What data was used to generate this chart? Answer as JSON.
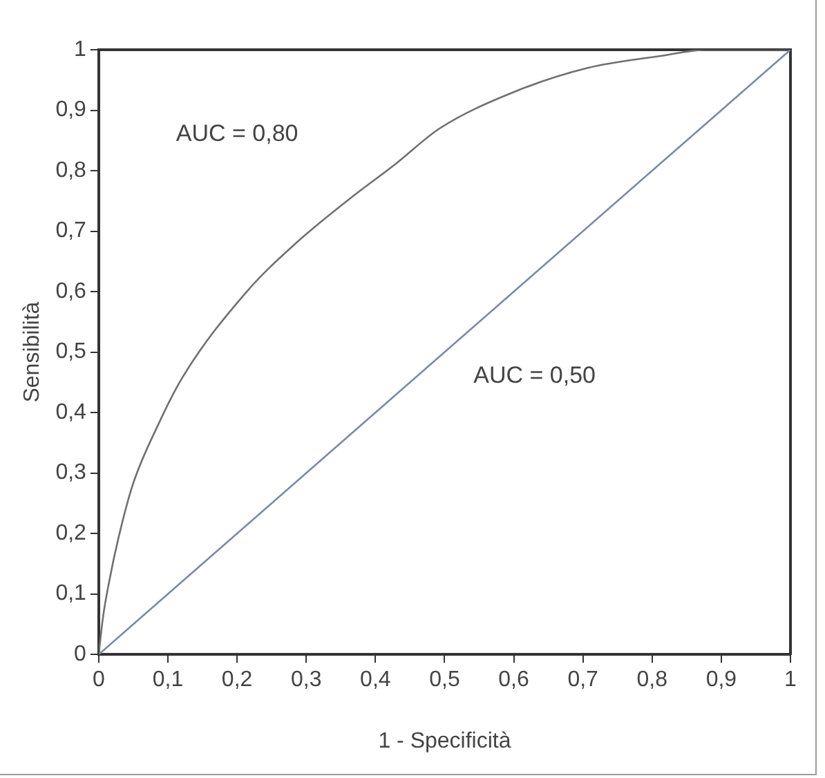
{
  "chart_data": {
    "type": "line",
    "xlabel": "1 - Specificità",
    "ylabel": "Sensibilità",
    "xlim": [
      0,
      1
    ],
    "ylim": [
      0,
      1
    ],
    "xticks": [
      {
        "value": 0,
        "label": "0"
      },
      {
        "value": 0.1,
        "label": "0,1"
      },
      {
        "value": 0.2,
        "label": "0,2"
      },
      {
        "value": 0.3,
        "label": "0,3"
      },
      {
        "value": 0.4,
        "label": "0,4"
      },
      {
        "value": 0.5,
        "label": "0,5"
      },
      {
        "value": 0.6,
        "label": "0,6"
      },
      {
        "value": 0.7,
        "label": "0,7"
      },
      {
        "value": 0.8,
        "label": "0,8"
      },
      {
        "value": 0.9,
        "label": "0,9"
      },
      {
        "value": 1,
        "label": "1"
      }
    ],
    "yticks": [
      {
        "value": 0,
        "label": "0"
      },
      {
        "value": 0.1,
        "label": "0,1"
      },
      {
        "value": 0.2,
        "label": "0,2"
      },
      {
        "value": 0.3,
        "label": "0,3"
      },
      {
        "value": 0.4,
        "label": "0,4"
      },
      {
        "value": 0.5,
        "label": "0,5"
      },
      {
        "value": 0.6,
        "label": "0,6"
      },
      {
        "value": 0.7,
        "label": "0,7"
      },
      {
        "value": 0.8,
        "label": "0,8"
      },
      {
        "value": 0.9,
        "label": "0,9"
      },
      {
        "value": 1,
        "label": "1"
      }
    ],
    "series": [
      {
        "color": "#707070",
        "x": [
          0,
          0.006,
          0.015,
          0.028,
          0.049,
          0.086,
          0.122,
          0.214,
          0.285,
          0.37,
          0.428,
          0.493,
          0.6,
          0.707,
          0.814,
          0.878,
          1
        ],
        "values": [
          0,
          0.06,
          0.12,
          0.19,
          0.28,
          0.38,
          0.46,
          0.6,
          0.68,
          0.76,
          0.81,
          0.87,
          0.93,
          0.97,
          0.99,
          1,
          1
        ]
      },
      {
        "color": "#7a8aa6",
        "x": [
          0,
          1
        ],
        "values": [
          0,
          1
        ]
      }
    ],
    "annotations": [
      "AUC = 0,80",
      "AUC = 0,50"
    ],
    "marker": "none",
    "line_style": "solid",
    "legend": false,
    "grid": false
  }
}
